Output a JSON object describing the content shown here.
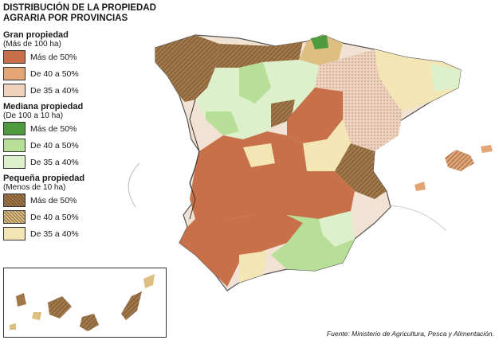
{
  "title": {
    "line1": "DISTRIBUCIÓN DE LA PROPIEDAD",
    "line2": "AGRARIA POR PROVINCIAS"
  },
  "legend": [
    {
      "title": "Gran propiedad",
      "subtitle": "(Más de 100 ha)",
      "items": [
        {
          "label": "Más de 50%",
          "color": "#c8704a"
        },
        {
          "label": "De 40 a 50%",
          "color": "#e3a476"
        },
        {
          "label": "De 35 a 40%",
          "color": "#f0d2bc"
        }
      ]
    },
    {
      "title": "Mediana propiedad",
      "subtitle": "(De 100 a 10 ha)",
      "items": [
        {
          "label": "Más de 50%",
          "color": "#4f9a3e"
        },
        {
          "label": "De 40 a 50%",
          "color": "#b7df98"
        },
        {
          "label": "De 35 a 40%",
          "color": "#ddf0cc"
        }
      ]
    },
    {
      "title": "Pequeña propiedad",
      "subtitle": "(Menos de 10 ha)",
      "items": [
        {
          "label": "Más de 50%",
          "color": "#a0784a"
        },
        {
          "label": "De 40 a 50%",
          "color": "#ddbf82"
        },
        {
          "label": "De 35 a 40%",
          "color": "#f3e6b4"
        }
      ]
    }
  ],
  "source": "Fuente: Ministerio de Agricultura, Pesca y Alimentación."
}
